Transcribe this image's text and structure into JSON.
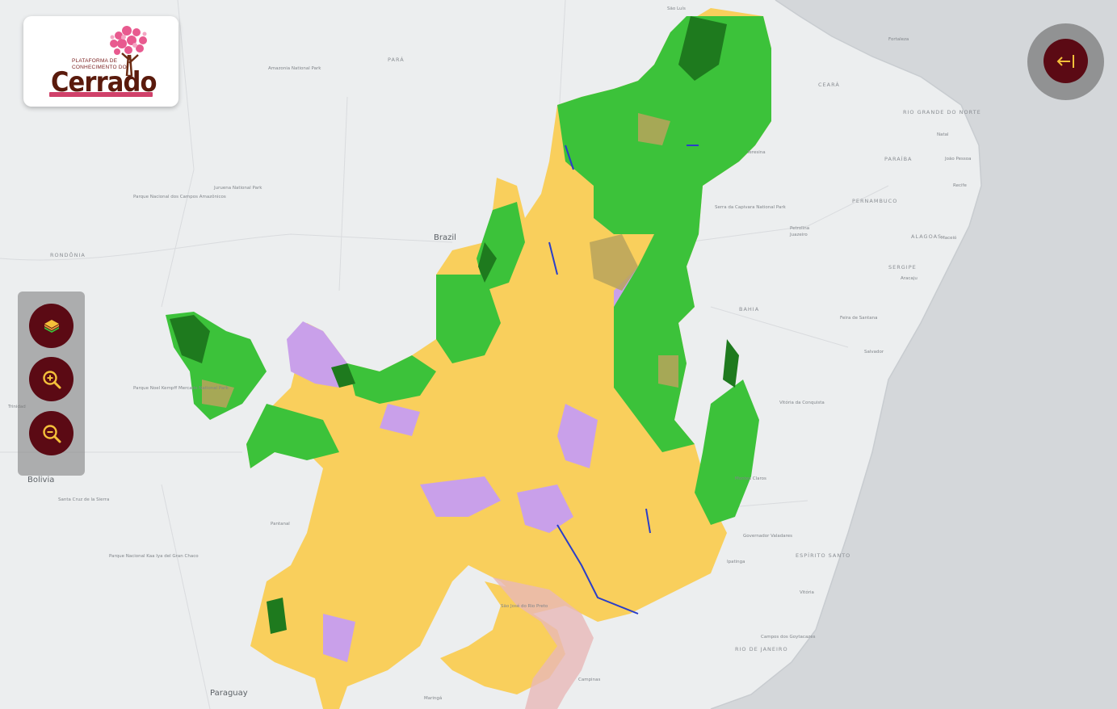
{
  "logo": {
    "line1": "PLATAFORMA DE",
    "line2": "CONHECIMENTO DO",
    "word": "Cerrado"
  },
  "toolbar": {
    "layers_icon": "layers-icon",
    "zoom_in_icon": "zoom-in-icon",
    "zoom_out_icon": "zoom-out-icon"
  },
  "panel": {
    "collapse_icon": "collapse-left-icon"
  },
  "colors": {
    "button_bg": "#5b0a14",
    "icon_accent": "#f5c13a",
    "forest": "#3cc23a",
    "dense_forest": "#1e7a1e",
    "agriculture": "#f9cf5c",
    "pasture": "#c9a0ea",
    "savanna": "#b9a35c",
    "water": "#2a3ec9"
  },
  "map_labels": {
    "brazil": "Brazil",
    "bolivia": "Bolivia",
    "paraguay": "Paraguay",
    "para": "PARÁ",
    "rondonia": "RONDÔNIA",
    "bahia": "BAHIA",
    "ceara": "CEARÁ",
    "pernambuco": "PERNAMBUCO",
    "paraiba": "PARAÍBA",
    "rio_grande_do_norte": "RIO GRANDE DO NORTE",
    "alagoas": "ALAGOAS",
    "sergipe": "SERGIPE",
    "espirito_santo": "ESPÍRITO SANTO",
    "rio_de_janeiro": "RIO DE JANEIRO",
    "sao_luis": "São Luís",
    "teresina": "Teresina",
    "fortaleza": "Fortaleza",
    "natal": "Natal",
    "joao_pessoa": "João Pessoa",
    "recife": "Recife",
    "maceio": "Maceió",
    "aracaju": "Aracaju",
    "salvador": "Salvador",
    "feira_de_santana": "Feira de Santana",
    "vitoria_da_conquista": "Vitória da Conquista",
    "petrolina": "Petrolina",
    "juazeiro": "Juazeiro",
    "montes_claros": "Montes Claros",
    "governador_valadares": "Governador Valadares",
    "ipatinga": "Ipatinga",
    "vitoria": "Vitória",
    "campos": "Campos dos Goytacazes",
    "santa_cruz": "Santa Cruz de la Sierra",
    "trinidad": "Trinidad",
    "pantanal": "Pantanal",
    "campinas": "Campinas",
    "maringa": "Maringá",
    "sao_jose_rio_preto": "São José do Rio Preto",
    "serra_da_capivara": "Serra da Capivara National Park",
    "campos_amazonicos": "Parque Nacional dos Campos Amazônicos",
    "noel_kempff": "Parque Noel Kempff Mercado National Park",
    "kaa_iya": "Parque Nacional Kaa Iya del Gran Chaco",
    "amazonia_np": "Amazonia National Park",
    "juruena_np": "Juruena National Park"
  }
}
